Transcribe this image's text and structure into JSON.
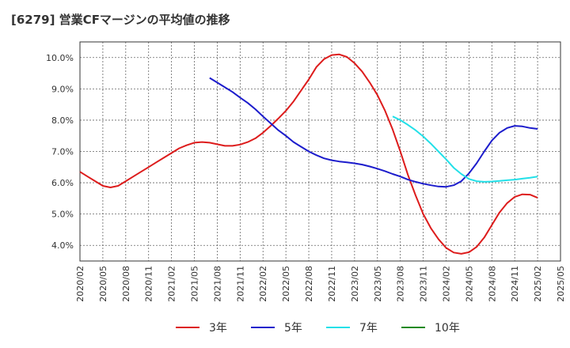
{
  "chart_data": {
    "type": "line",
    "title": "[6279]  営業CFマージンの平均値の推移",
    "xlabel": "",
    "ylabel": "",
    "x": [
      "2020/02",
      "2020/05",
      "2020/08",
      "2020/11",
      "2021/02",
      "2021/05",
      "2021/08",
      "2021/11",
      "2022/02",
      "2022/05",
      "2022/08",
      "2022/11",
      "2023/02",
      "2023/05",
      "2023/08",
      "2023/11",
      "2024/02",
      "2024/05",
      "2024/08",
      "2024/11",
      "2025/02",
      "2025/05"
    ],
    "ylim": [
      3.5,
      10.5
    ],
    "yticks": [
      4.0,
      5.0,
      6.0,
      7.0,
      8.0,
      9.0,
      10.0
    ],
    "ytick_labels": [
      "4.0%",
      "5.0%",
      "6.0%",
      "7.0%",
      "8.0%",
      "9.0%",
      "10.0%"
    ],
    "grid": true,
    "legend_position": "bottom",
    "series": [
      {
        "name": "3年",
        "color": "#dd1c1c",
        "points": [
          [
            "2020/02",
            6.35
          ],
          [
            "2020/03",
            6.2
          ],
          [
            "2020/04",
            6.05
          ],
          [
            "2020/05",
            5.9
          ],
          [
            "2020/06",
            5.85
          ],
          [
            "2020/07",
            5.9
          ],
          [
            "2020/08",
            6.05
          ],
          [
            "2020/09",
            6.2
          ],
          [
            "2020/10",
            6.35
          ],
          [
            "2020/11",
            6.5
          ],
          [
            "2020/12",
            6.65
          ],
          [
            "2021/01",
            6.8
          ],
          [
            "2021/02",
            6.95
          ],
          [
            "2021/03",
            7.1
          ],
          [
            "2021/04",
            7.2
          ],
          [
            "2021/05",
            7.28
          ],
          [
            "2021/06",
            7.3
          ],
          [
            "2021/07",
            7.28
          ],
          [
            "2021/08",
            7.23
          ],
          [
            "2021/09",
            7.18
          ],
          [
            "2021/10",
            7.18
          ],
          [
            "2021/11",
            7.22
          ],
          [
            "2021/12",
            7.3
          ],
          [
            "2022/01",
            7.42
          ],
          [
            "2022/02",
            7.6
          ],
          [
            "2022/03",
            7.82
          ],
          [
            "2022/04",
            8.05
          ],
          [
            "2022/05",
            8.3
          ],
          [
            "2022/06",
            8.6
          ],
          [
            "2022/07",
            8.95
          ],
          [
            "2022/08",
            9.3
          ],
          [
            "2022/09",
            9.7
          ],
          [
            "2022/10",
            9.95
          ],
          [
            "2022/11",
            10.08
          ],
          [
            "2022/12",
            10.1
          ],
          [
            "2023/01",
            10.02
          ],
          [
            "2023/02",
            9.82
          ],
          [
            "2023/03",
            9.55
          ],
          [
            "2023/04",
            9.2
          ],
          [
            "2023/05",
            8.8
          ],
          [
            "2023/06",
            8.3
          ],
          [
            "2023/07",
            7.7
          ],
          [
            "2023/08",
            7.0
          ],
          [
            "2023/09",
            6.25
          ],
          [
            "2023/10",
            5.6
          ],
          [
            "2023/11",
            5.0
          ],
          [
            "2023/12",
            4.55
          ],
          [
            "2024/01",
            4.2
          ],
          [
            "2024/02",
            3.92
          ],
          [
            "2024/03",
            3.77
          ],
          [
            "2024/04",
            3.73
          ],
          [
            "2024/05",
            3.78
          ],
          [
            "2024/06",
            3.95
          ],
          [
            "2024/07",
            4.25
          ],
          [
            "2024/08",
            4.65
          ],
          [
            "2024/09",
            5.05
          ],
          [
            "2024/10",
            5.35
          ],
          [
            "2024/11",
            5.55
          ],
          [
            "2024/12",
            5.63
          ],
          [
            "2025/01",
            5.62
          ],
          [
            "2025/02",
            5.52
          ]
        ]
      },
      {
        "name": "5年",
        "color": "#1c1ccc",
        "points": [
          [
            "2021/07",
            9.35
          ],
          [
            "2021/08",
            9.2
          ],
          [
            "2021/09",
            9.05
          ],
          [
            "2021/10",
            8.9
          ],
          [
            "2021/11",
            8.72
          ],
          [
            "2021/12",
            8.55
          ],
          [
            "2022/01",
            8.35
          ],
          [
            "2022/02",
            8.12
          ],
          [
            "2022/03",
            7.9
          ],
          [
            "2022/04",
            7.68
          ],
          [
            "2022/05",
            7.5
          ],
          [
            "2022/06",
            7.3
          ],
          [
            "2022/07",
            7.15
          ],
          [
            "2022/08",
            7.0
          ],
          [
            "2022/09",
            6.88
          ],
          [
            "2022/10",
            6.78
          ],
          [
            "2022/11",
            6.72
          ],
          [
            "2022/12",
            6.68
          ],
          [
            "2023/01",
            6.65
          ],
          [
            "2023/02",
            6.62
          ],
          [
            "2023/03",
            6.58
          ],
          [
            "2023/04",
            6.52
          ],
          [
            "2023/05",
            6.45
          ],
          [
            "2023/06",
            6.37
          ],
          [
            "2023/07",
            6.28
          ],
          [
            "2023/08",
            6.2
          ],
          [
            "2023/09",
            6.1
          ],
          [
            "2023/10",
            6.03
          ],
          [
            "2023/11",
            5.97
          ],
          [
            "2023/12",
            5.92
          ],
          [
            "2024/01",
            5.88
          ],
          [
            "2024/02",
            5.87
          ],
          [
            "2024/03",
            5.92
          ],
          [
            "2024/04",
            6.05
          ],
          [
            "2024/05",
            6.3
          ],
          [
            "2024/06",
            6.62
          ],
          [
            "2024/07",
            7.0
          ],
          [
            "2024/08",
            7.35
          ],
          [
            "2024/09",
            7.6
          ],
          [
            "2024/10",
            7.75
          ],
          [
            "2024/11",
            7.82
          ],
          [
            "2024/12",
            7.8
          ],
          [
            "2025/01",
            7.75
          ],
          [
            "2025/02",
            7.72
          ]
        ]
      },
      {
        "name": "7年",
        "color": "#22e0e8",
        "points": [
          [
            "2023/07",
            8.12
          ],
          [
            "2023/08",
            8.0
          ],
          [
            "2023/09",
            7.85
          ],
          [
            "2023/10",
            7.68
          ],
          [
            "2023/11",
            7.48
          ],
          [
            "2023/12",
            7.25
          ],
          [
            "2024/01",
            7.0
          ],
          [
            "2024/02",
            6.75
          ],
          [
            "2024/03",
            6.48
          ],
          [
            "2024/04",
            6.28
          ],
          [
            "2024/05",
            6.12
          ],
          [
            "2024/06",
            6.05
          ],
          [
            "2024/07",
            6.03
          ],
          [
            "2024/08",
            6.04
          ],
          [
            "2024/09",
            6.06
          ],
          [
            "2024/10",
            6.08
          ],
          [
            "2024/11",
            6.1
          ],
          [
            "2024/12",
            6.13
          ],
          [
            "2025/01",
            6.16
          ],
          [
            "2025/02",
            6.2
          ]
        ]
      },
      {
        "name": "10年",
        "color": "#1e8a1e",
        "points": []
      }
    ]
  }
}
